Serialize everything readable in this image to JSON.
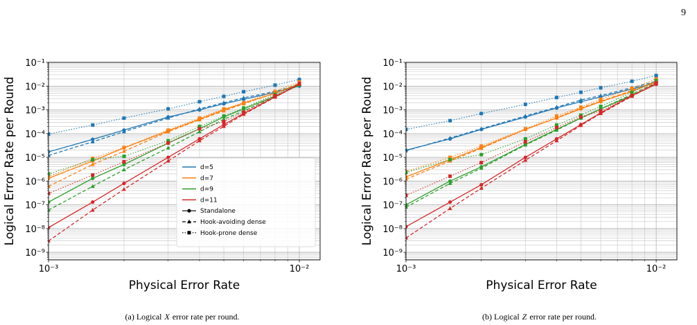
{
  "page_number": "9",
  "chart_data": [
    {
      "type": "line",
      "x_label": "Physical Error Rate",
      "y_label": "Logical Error Rate per Round",
      "caption": {
        "prefix": "(a) Logical",
        "symbol": "X",
        "suffix": "error rate per round."
      },
      "log_x": true,
      "log_y": true,
      "grid": true,
      "minor_grid": true,
      "xlim": [
        0.001,
        0.0121
      ],
      "ylim": [
        4.8e-10,
        0.1
      ],
      "xticks": [
        {
          "value": 0.001,
          "label": "10⁻³"
        },
        {
          "value": 0.01,
          "label": "10⁻²"
        }
      ],
      "yticks": [
        {
          "value": 1e-09,
          "label": "10⁻⁹"
        },
        {
          "value": 1e-08,
          "label": "10⁻⁸"
        },
        {
          "value": 1e-07,
          "label": "10⁻⁷"
        },
        {
          "value": 1e-06,
          "label": "10⁻⁶"
        },
        {
          "value": 1e-05,
          "label": "10⁻⁵"
        },
        {
          "value": 0.0001,
          "label": "10⁻⁴"
        },
        {
          "value": 0.001,
          "label": "10⁻³"
        },
        {
          "value": 0.01,
          "label": "10⁻²"
        },
        {
          "value": 0.1,
          "label": "10⁻¹"
        }
      ],
      "x": [
        0.001,
        0.0015,
        0.002,
        0.003,
        0.004,
        0.005,
        0.006,
        0.008,
        0.01
      ],
      "styles": [
        {
          "name": "Standalone",
          "marker": "circle",
          "dash": "solid"
        },
        {
          "name": "Hook-avoiding dense",
          "marker": "triangle",
          "dash": "dashed"
        },
        {
          "name": "Hook-prone dense",
          "marker": "square",
          "dash": "dotted"
        }
      ],
      "legend": "lower right",
      "series": [
        {
          "name": "d=5",
          "color": "#1f77b4",
          "values": [
            [
              1.7e-05,
              5.7e-05,
              0.00014,
              0.0005,
              0.001,
              0.0018,
              0.0028,
              0.0054,
              0.01
            ],
            [
              1.2e-05,
              4.5e-05,
              0.00012,
              0.00045,
              0.0011,
              0.002,
              0.0032,
              0.006,
              0.011
            ],
            [
              9.5e-05,
              0.00023,
              0.00045,
              0.0011,
              0.0022,
              0.0037,
              0.0058,
              0.011,
              0.019
            ]
          ]
        },
        {
          "name": "d=7",
          "color": "#ff7f0e",
          "values": [
            [
              1.3e-06,
              7e-06,
              2.5e-05,
              0.00013,
              0.0004,
              0.001,
              0.0019,
              0.005,
              0.012
            ],
            [
              6e-07,
              5e-06,
              1.8e-05,
              0.00012,
              0.00038,
              0.0009,
              0.0018,
              0.005,
              0.013
            ],
            [
              1.5e-06,
              9e-06,
              2.6e-05,
              0.00014,
              0.00045,
              0.0011,
              0.002,
              0.006,
              0.015
            ]
          ]
        },
        {
          "name": "d=9",
          "color": "#2ca02c",
          "values": [
            [
              1.3e-07,
              1.3e-06,
              5e-06,
              4e-05,
              0.00016,
              0.0005,
              0.0011,
              0.0038,
              0.011
            ],
            [
              6e-08,
              6e-07,
              3e-06,
              2.5e-05,
              0.00012,
              0.0004,
              0.0009,
              0.0035,
              0.012
            ],
            [
              2e-06,
              8e-06,
              1.1e-05,
              5e-05,
              0.0002,
              0.00055,
              0.0012,
              0.0045,
              0.013
            ]
          ]
        },
        {
          "name": "d=11",
          "color": "#d62728",
          "values": [
            [
              1.1e-08,
              1.3e-07,
              8e-07,
              1e-05,
              6e-05,
              0.00024,
              0.0007,
              0.0035,
              0.012
            ],
            [
              3e-09,
              6e-08,
              4.5e-07,
              7e-06,
              5e-05,
              0.0002,
              0.00065,
              0.0034,
              0.012
            ],
            [
              3e-07,
              1.8e-06,
              6.5e-06,
              4e-05,
              0.00016,
              0.00032,
              0.0008,
              0.004,
              0.013
            ]
          ]
        }
      ]
    },
    {
      "type": "line",
      "x_label": "Physical Error Rate",
      "y_label": "Logical Error Rate per Round",
      "caption": {
        "prefix": "(b) Logical",
        "symbol": "Z",
        "suffix": "error rate per round."
      },
      "log_x": true,
      "log_y": true,
      "grid": true,
      "minor_grid": true,
      "xlim": [
        0.001,
        0.0121
      ],
      "ylim": [
        4.8e-10,
        0.1
      ],
      "xticks": [
        {
          "value": 0.001,
          "label": "10⁻³"
        },
        {
          "value": 0.01,
          "label": "10⁻²"
        }
      ],
      "yticks": [
        {
          "value": 1e-09,
          "label": "10⁻⁹"
        },
        {
          "value": 1e-08,
          "label": "10⁻⁸"
        },
        {
          "value": 1e-07,
          "label": "10⁻⁷"
        },
        {
          "value": 1e-06,
          "label": "10⁻⁶"
        },
        {
          "value": 1e-05,
          "label": "10⁻⁵"
        },
        {
          "value": 0.0001,
          "label": "10⁻⁴"
        },
        {
          "value": 0.001,
          "label": "10⁻³"
        },
        {
          "value": 0.01,
          "label": "10⁻²"
        },
        {
          "value": 0.1,
          "label": "10⁻¹"
        }
      ],
      "x": [
        0.001,
        0.0015,
        0.002,
        0.003,
        0.004,
        0.005,
        0.006,
        0.008,
        0.01
      ],
      "styles": [
        {
          "marker": "circle",
          "dash": "solid"
        },
        {
          "marker": "triangle",
          "dash": "dashed"
        },
        {
          "marker": "square",
          "dash": "dotted"
        }
      ],
      "series": [
        {
          "color": "#1f77b4",
          "values": [
            [
              2e-05,
              6e-05,
              0.00015,
              0.0005,
              0.0012,
              0.0022,
              0.0035,
              0.0075,
              0.014
            ],
            [
              1.9e-05,
              6.5e-05,
              0.00016,
              0.00055,
              0.0013,
              0.0026,
              0.004,
              0.0085,
              0.016
            ],
            [
              0.00015,
              0.00035,
              0.0007,
              0.0017,
              0.0033,
              0.0055,
              0.0085,
              0.016,
              0.028
            ]
          ]
        },
        {
          "color": "#ff7f0e",
          "values": [
            [
              1.5e-06,
              8e-06,
              2.6e-05,
              0.00015,
              0.00045,
              0.0011,
              0.0022,
              0.006,
              0.015
            ],
            [
              1.2e-06,
              7e-06,
              2.4e-05,
              0.00015,
              0.00046,
              0.0012,
              0.0023,
              0.0065,
              0.016
            ],
            [
              2.5e-06,
              1e-05,
              3e-05,
              0.00016,
              0.00055,
              0.0013,
              0.0028,
              0.008,
              0.02
            ]
          ]
        },
        {
          "color": "#2ca02c",
          "values": [
            [
              1e-07,
              1e-06,
              4e-06,
              3.5e-05,
              0.00015,
              0.00045,
              0.0011,
              0.004,
              0.012
            ],
            [
              8e-08,
              8e-07,
              3.5e-06,
              3.3e-05,
              0.00014,
              0.00045,
              0.0011,
              0.0045,
              0.014
            ],
            [
              2.3e-06,
              8e-06,
              1.3e-05,
              6e-05,
              0.00023,
              0.0006,
              0.0014,
              0.0055,
              0.017
            ]
          ]
        },
        {
          "color": "#d62728",
          "values": [
            [
              1.2e-08,
              1.3e-07,
              7e-07,
              1e-05,
              6e-05,
              0.00024,
              0.00075,
              0.004,
              0.012
            ],
            [
              4e-09,
              7e-08,
              5e-07,
              7.5e-06,
              5e-05,
              0.00022,
              0.0007,
              0.0037,
              0.013
            ],
            [
              2.5e-07,
              1.6e-06,
              6e-06,
              4.5e-05,
              0.00018,
              0.0005,
              0.0009,
              0.004,
              0.014
            ]
          ]
        }
      ]
    }
  ]
}
